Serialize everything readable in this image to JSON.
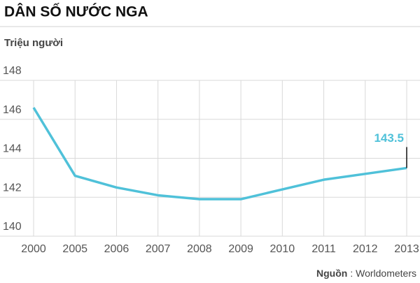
{
  "chart_data": {
    "type": "line",
    "title": "DÂN SỐ NƯỚC NGA",
    "y_label": "Triệu người",
    "categories": [
      "2000",
      "2005",
      "2006",
      "2007",
      "2008",
      "2009",
      "2010",
      "2011",
      "2012",
      "2013"
    ],
    "series": [
      {
        "name": "Dân số",
        "color": "#4fc1d9",
        "values": [
          146.6,
          143.1,
          142.5,
          142.1,
          141.9,
          141.9,
          142.4,
          142.9,
          143.2,
          143.5
        ]
      }
    ],
    "ylim": [
      140,
      148
    ],
    "yticks": [
      140,
      142,
      144,
      146,
      148
    ],
    "grid": true,
    "source_label": "Nguồn",
    "source": ": Worldometers"
  }
}
